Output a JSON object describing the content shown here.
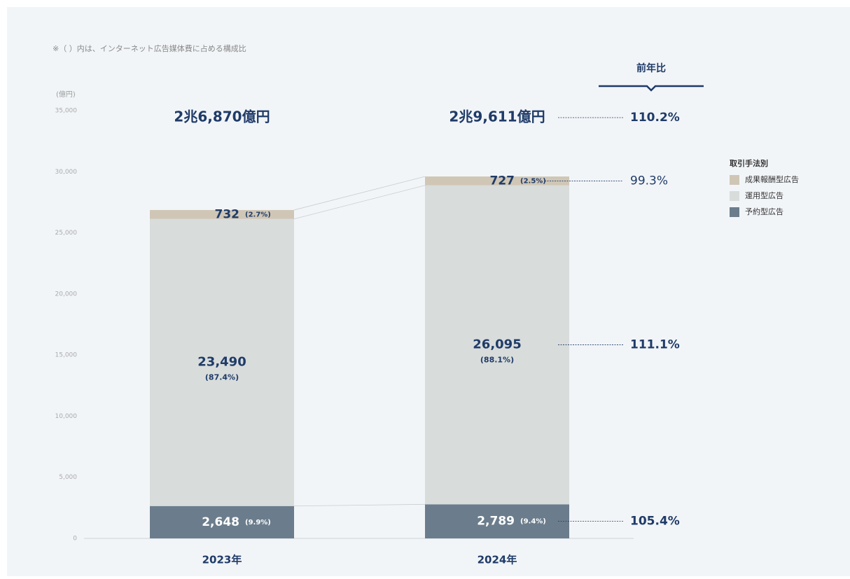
{
  "chart_data": {
    "type": "stacked_bar",
    "note": "※（ ）内は、インターネット広告媒体費に占める構成比",
    "y_unit": "(億円)",
    "categories": [
      "2023年",
      "2024年"
    ],
    "series": [
      {
        "name": "予約型広告",
        "color": "#6b7d8c",
        "values": [
          2648,
          2789
        ],
        "value_labels": [
          "2,648",
          "2,789"
        ],
        "share_labels": [
          "(9.9%)",
          "(9.4%)"
        ],
        "yoy": "105.4%"
      },
      {
        "name": "運用型広告",
        "color": "#d8dcdb",
        "values": [
          23490,
          26095
        ],
        "value_labels": [
          "23,490",
          "26,095"
        ],
        "share_labels": [
          "(87.4%)",
          "(88.1%)"
        ],
        "yoy": "111.1%"
      },
      {
        "name": "成果報酬型広告",
        "color": "#cfc6b6",
        "values": [
          732,
          727
        ],
        "value_labels": [
          "732",
          "727"
        ],
        "share_labels": [
          "(2.7%)",
          "(2.5%)"
        ],
        "yoy": "99.3%"
      }
    ],
    "total_labels": [
      "2兆6,870億円",
      "2兆9,611億円"
    ],
    "total_yoy": "110.2%",
    "yoy_title": "前年比",
    "legend_title": "取引手法別",
    "ylim": [
      0,
      35000
    ],
    "yticks": [
      0,
      {
        "value": 5000,
        "label": "5,000"
      },
      {
        "value": 10000,
        "label": "10,000"
      },
      {
        "value": 15000,
        "label": "15,000"
      },
      {
        "value": 20000,
        "label": "20,000"
      },
      {
        "value": 25000,
        "label": "25,000"
      },
      {
        "value": 30000,
        "label": "30,000"
      },
      {
        "value": 35000,
        "label": "35,000"
      }
    ]
  }
}
